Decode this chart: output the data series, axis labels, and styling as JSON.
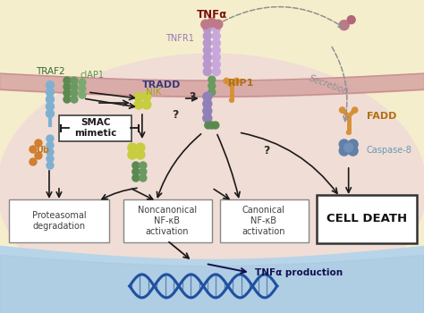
{
  "bg_outer": "#f5eecc",
  "bg_cell": "#f2ddd5",
  "bg_inner": "#f7ede8",
  "bg_nucleus": "#b8d4e8",
  "colors": {
    "purple_light": "#c8a8d8",
    "purple_dark": "#9878b8",
    "green_dark": "#5a8a50",
    "green_light": "#78a868",
    "yellow_green": "#c8cc40",
    "blue_light": "#88b8d8",
    "blue_dark": "#5070a0",
    "orange": "#d89038",
    "pink": "#c87888",
    "membrane": "#d0a0a0",
    "arrow": "#1a1a1a",
    "dashed": "#909090",
    "box_edge": "#888888",
    "death_edge": "#333333"
  },
  "labels": {
    "TNFa": "TNFα",
    "TNFR1": "TNFR1",
    "TRADD": "TRADD",
    "RIP1": "RIP1",
    "TRAF2": "TRAF2",
    "cIAP1": "cIAP1",
    "NIK": "NIK",
    "SMAC": "SMAC\nmimetic",
    "Ub": "Ub",
    "FADD": "FADD",
    "Caspase8": "Caspase-8",
    "Secretion": "Secretion",
    "ProtDeg": "Proteasomal\ndegradation",
    "NoncanNFkB": "Noncanonical\nNF-κB\nactivation",
    "CanNFkB": "Canonical\nNF-κB\nactivation",
    "CellDeath": "CELL DEATH",
    "TNFaProd": "TNFα production"
  },
  "label_colors": {
    "TNFa": "#7a1010",
    "TNFR1": "#9878b8",
    "TRADD": "#383878",
    "RIP1": "#b07010",
    "TRAF2": "#386838",
    "cIAP1": "#5a9050",
    "NIK": "#a0a020",
    "Ub": "#c07820",
    "FADD": "#b07010",
    "Caspase8": "#6898b8",
    "Secretion": "#909090",
    "box": "#404040",
    "CellDeath": "#101010",
    "TNFaProd": "#101050",
    "question": "#303030"
  }
}
